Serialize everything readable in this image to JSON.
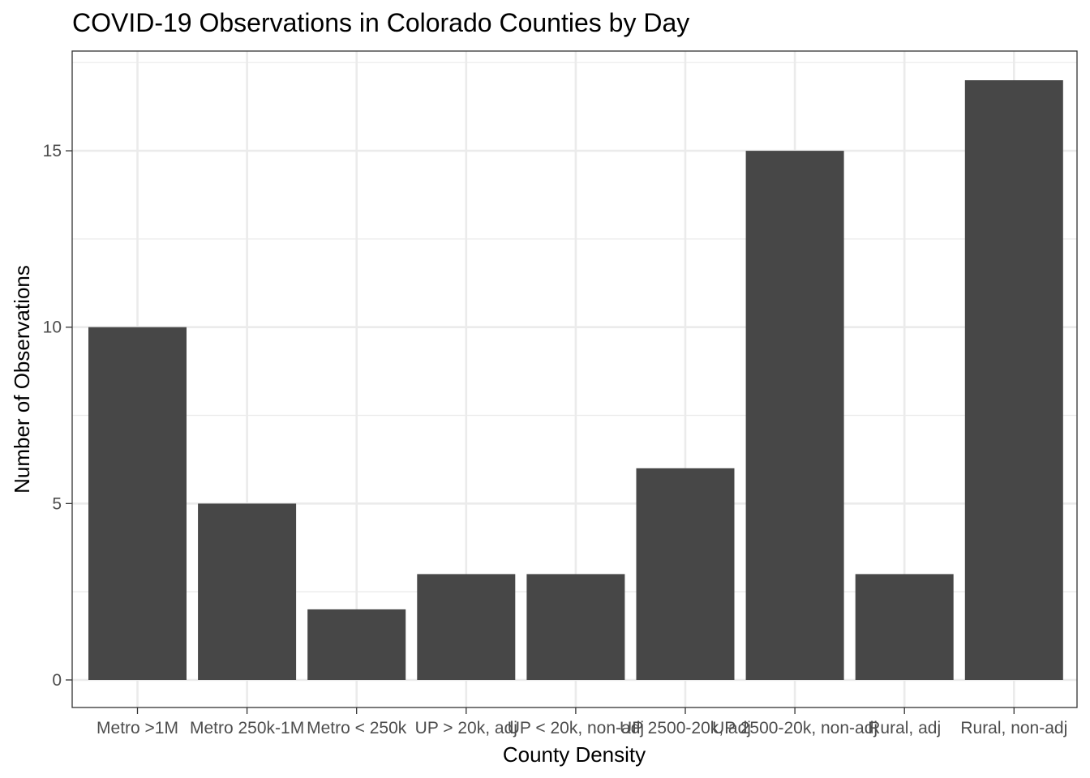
{
  "chart_data": {
    "type": "bar",
    "title": "COVID-19 Observations in Colorado Counties by Day",
    "xlabel": "County Density",
    "ylabel": "Number of Observations",
    "categories": [
      "Metro >1M",
      "Metro 250k-1M",
      "Metro < 250k",
      "UP > 20k, adj",
      "UP < 20k, non-adj",
      "UP 2500-20k, adj",
      "UP 2500-20k, non-adj",
      "Rural, adj",
      "Rural, non-adj"
    ],
    "values": [
      10,
      5,
      2,
      3,
      3,
      6,
      15,
      3,
      17
    ],
    "ylim": [
      0,
      17.85
    ],
    "yticks": [
      0,
      5,
      10,
      15
    ],
    "grid": true,
    "bar_color": "#474747",
    "grid_color": "#ebebeb"
  }
}
